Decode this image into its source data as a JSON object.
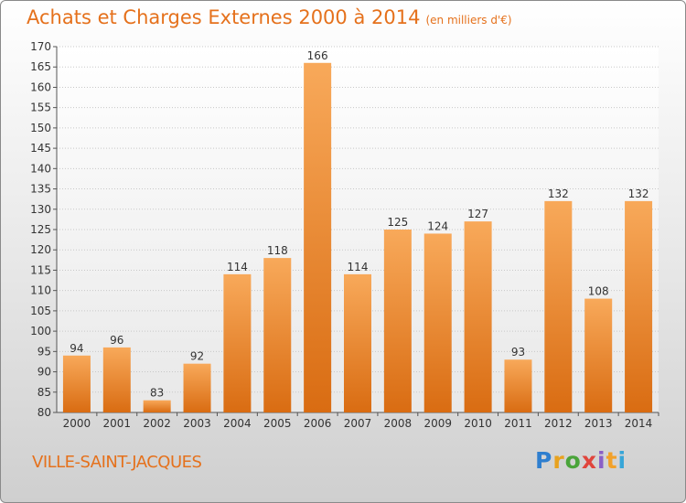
{
  "header": {
    "title": "Achats et Charges Externes 2000 à 2014",
    "unit": "(en milliers d'€)"
  },
  "commune": "VILLE-SAINT-JACQUES",
  "logo": {
    "letters": [
      "P",
      "r",
      "o",
      "x",
      "i",
      "t",
      "i"
    ]
  },
  "colors": {
    "accent": "#e5711c",
    "bar_top": "#f8a95a",
    "bar_bottom": "#d96c12",
    "grid": "#c8c8c8"
  },
  "chart_data": {
    "type": "bar",
    "title": "Achats et Charges Externes 2000 à 2014",
    "subtitle": "(en milliers d'€)",
    "categories": [
      "2000",
      "2001",
      "2002",
      "2003",
      "2004",
      "2005",
      "2006",
      "2007",
      "2008",
      "2009",
      "2010",
      "2011",
      "2012",
      "2013",
      "2014"
    ],
    "values": [
      94,
      96,
      83,
      92,
      114,
      118,
      166,
      114,
      125,
      124,
      127,
      93,
      132,
      108,
      132
    ],
    "ylim": [
      80,
      170
    ],
    "yticks": [
      80,
      85,
      90,
      95,
      100,
      105,
      110,
      115,
      120,
      125,
      130,
      135,
      140,
      145,
      150,
      155,
      160,
      165,
      170
    ],
    "grid": true,
    "data_labels": true,
    "legend": "none"
  }
}
